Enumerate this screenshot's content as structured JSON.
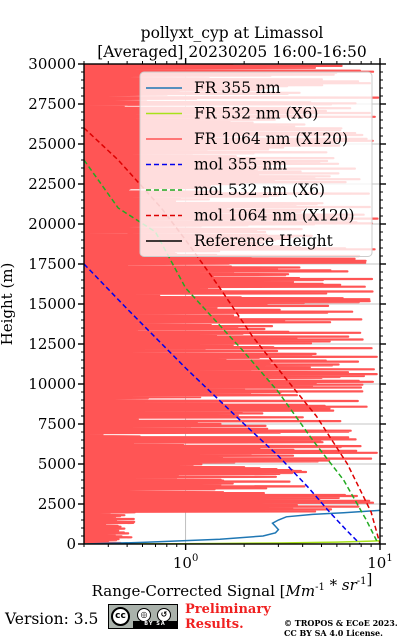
{
  "chart_data": {
    "type": "line",
    "title_line1": "pollyxt_cyp at Limassol",
    "title_line2": "[Averaged] 20230205 16:00-16:50",
    "xlabel": "Range-Corrected Signal [Mm^-1 * sr^-1]",
    "ylabel": "Height (m)",
    "xscale": "log",
    "xlim": [
      0.3,
      10
    ],
    "ylim": [
      0,
      30000
    ],
    "xtick_labels": [
      "10^0",
      "10^1"
    ],
    "ytick_values": [
      0,
      2500,
      5000,
      7500,
      10000,
      12500,
      15000,
      17500,
      20000,
      22500,
      25000,
      27500,
      30000
    ],
    "ytick_labels": [
      "0",
      "2500",
      "5000",
      "7500",
      "10000",
      "12500",
      "15000",
      "17500",
      "20000",
      "22500",
      "25000",
      "27500",
      "30000"
    ],
    "grid": true,
    "legend_position": "top-right",
    "series": [
      {
        "name": "FR 355 nm",
        "color": "#1f77b4",
        "style": "solid",
        "x": [
          0.3,
          0.6,
          1.5,
          2.5,
          2.9,
          3.0,
          2.9,
          2.8,
          3.0,
          3.3,
          4.5,
          6.5,
          8.5,
          10
        ],
        "y": [
          0,
          100,
          300,
          500,
          700,
          900,
          1100,
          1300,
          1500,
          1700,
          1850,
          1950,
          2050,
          2100
        ]
      },
      {
        "name": "FR 532 nm (X6)",
        "color": "#a8e21a",
        "style": "solid",
        "x": [
          0.3,
          1.0,
          3.0,
          6.0,
          9.0,
          10
        ],
        "y": [
          0,
          20,
          60,
          120,
          180,
          200
        ]
      },
      {
        "name": "FR 1064 nm (X120)",
        "color": "#ff5555",
        "style": "solid",
        "note": "noisy signal across 0-30000 m"
      },
      {
        "name": "mol 355 nm",
        "color": "#0000ee",
        "style": "dashed",
        "x": [
          0.3,
          0.5,
          1.0,
          2.0,
          3.0,
          4.3,
          5.5,
          6.8,
          7.9
        ],
        "y": [
          17500,
          14700,
          11000,
          7500,
          5500,
          3500,
          2000,
          800,
          0
        ]
      },
      {
        "name": "mol 532 nm (X6)",
        "color": "#22aa22",
        "style": "dashed",
        "x": [
          0.3,
          0.45,
          0.7,
          1.0,
          2.0,
          3.0,
          4.5,
          6.5,
          8.5,
          9.8
        ],
        "y": [
          24000,
          21000,
          19500,
          16000,
          12000,
          9500,
          6500,
          4000,
          1500,
          0
        ]
      },
      {
        "name": "mol 1064 nm (X120)",
        "color": "#dd0000",
        "style": "dashed",
        "x": [
          0.3,
          0.45,
          0.75,
          1.0,
          1.5,
          2.2,
          3.2,
          4.7,
          6.8,
          9.0,
          10
        ],
        "y": [
          26000,
          24000,
          21000,
          19000,
          16000,
          13000,
          10500,
          8000,
          5000,
          2000,
          0
        ]
      },
      {
        "name": "Reference Height",
        "color": "#000000",
        "style": "solid",
        "x": [],
        "y": []
      }
    ]
  },
  "footer": {
    "version_label": "Version: 3.5",
    "license_badge": {
      "cc": "cc",
      "by": "BY",
      "sa": "SA",
      "icons": [
        "cc-icon",
        "by-icon",
        "sa-icon"
      ]
    },
    "preliminary_line1": "Preliminary",
    "preliminary_line2": "Results.",
    "copyright_line1": "© TROPOS & ECoE 2023.",
    "copyright_line2": "CC BY SA 4.0 License.",
    "preliminary_color": "#f02020"
  }
}
